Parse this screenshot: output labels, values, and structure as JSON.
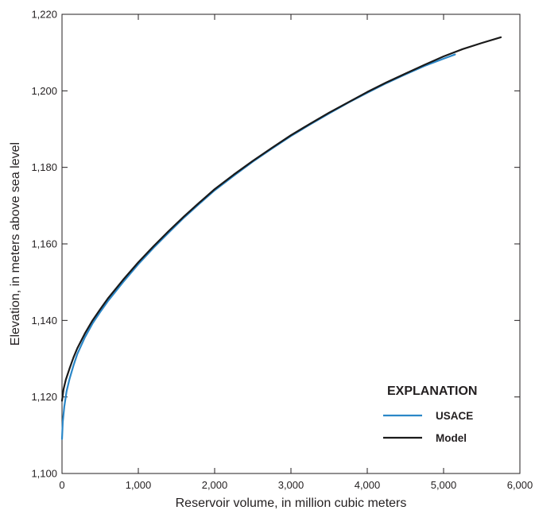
{
  "chart_data": {
    "type": "line",
    "title": "",
    "xlabel": "Reservoir volume, in million cubic meters",
    "ylabel": "Elevation, in meters above sea level",
    "xlim": [
      0,
      6000
    ],
    "ylim": [
      1100,
      1220
    ],
    "x_ticks": [
      0,
      1000,
      2000,
      3000,
      4000,
      5000,
      6000
    ],
    "x_tick_labels": [
      "0",
      "1,000",
      "2,000",
      "3,000",
      "4,000",
      "5,000",
      "6,000"
    ],
    "y_ticks": [
      1100,
      1120,
      1140,
      1160,
      1180,
      1200,
      1220
    ],
    "y_tick_labels": [
      "1,100",
      "1,120",
      "1,140",
      "1,160",
      "1,180",
      "1,200",
      "1,220"
    ],
    "grid": false,
    "legend": {
      "title": "EXPLANATION",
      "placement": "bottom-right"
    },
    "series": [
      {
        "name": "USACE",
        "color": "#2b87c8",
        "x": [
          0,
          10,
          30,
          60,
          100,
          150,
          200,
          300,
          400,
          500,
          600,
          800,
          1000,
          1200,
          1400,
          1600,
          1800,
          2000,
          2250,
          2500,
          2750,
          3000,
          3250,
          3500,
          3750,
          4000,
          4250,
          4500,
          4750,
          5000,
          5150
        ],
        "y": [
          1109,
          1113.5,
          1117.5,
          1121.5,
          1124.8,
          1128.2,
          1131.2,
          1135.6,
          1139.2,
          1142.2,
          1145,
          1150,
          1154.7,
          1159,
          1163,
          1166.9,
          1170.5,
          1174,
          1177.8,
          1181.5,
          1184.9,
          1188.2,
          1191.2,
          1194.1,
          1196.9,
          1199.5,
          1202,
          1204.3,
          1206.5,
          1208.4,
          1209.5
        ]
      },
      {
        "name": "Model",
        "color": "#1a1a1a",
        "x": [
          0,
          20,
          50,
          100,
          150,
          200,
          300,
          400,
          500,
          600,
          800,
          1000,
          1200,
          1400,
          1600,
          1800,
          2000,
          2250,
          2500,
          2750,
          3000,
          3250,
          3500,
          3750,
          4000,
          4250,
          4500,
          4750,
          5000,
          5250,
          5500,
          5750
        ],
        "y": [
          1119,
          1122,
          1124.5,
          1127.5,
          1130.3,
          1132.7,
          1136.6,
          1140,
          1142.9,
          1145.7,
          1150.6,
          1155.2,
          1159.4,
          1163.4,
          1167.2,
          1170.8,
          1174.3,
          1178.1,
          1181.7,
          1185.1,
          1188.4,
          1191.4,
          1194.3,
          1197,
          1199.7,
          1202.2,
          1204.5,
          1206.8,
          1209,
          1210.9,
          1212.5,
          1214
        ]
      }
    ]
  }
}
